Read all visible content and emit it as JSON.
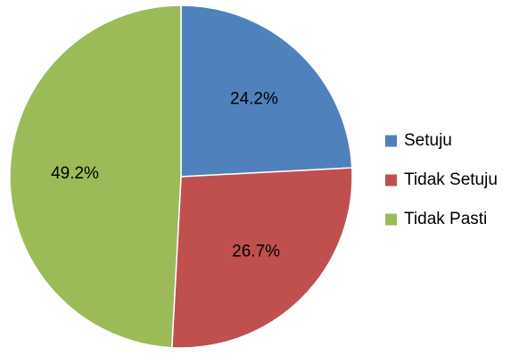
{
  "chart_data": {
    "type": "pie",
    "title": "",
    "start_angle_deg": 0,
    "direction": "clockwise",
    "legend_position": "right",
    "slices": [
      {
        "name": "Setuju",
        "value": 24.2,
        "label": "24.2%",
        "color": "#4F81BD"
      },
      {
        "name": "Tidak Setuju",
        "value": 26.7,
        "label": "26.7%",
        "color": "#C0504D"
      },
      {
        "name": "Tidak Pasti",
        "value": 49.2,
        "label": "49.2%",
        "color": "#9BBB59"
      }
    ]
  }
}
